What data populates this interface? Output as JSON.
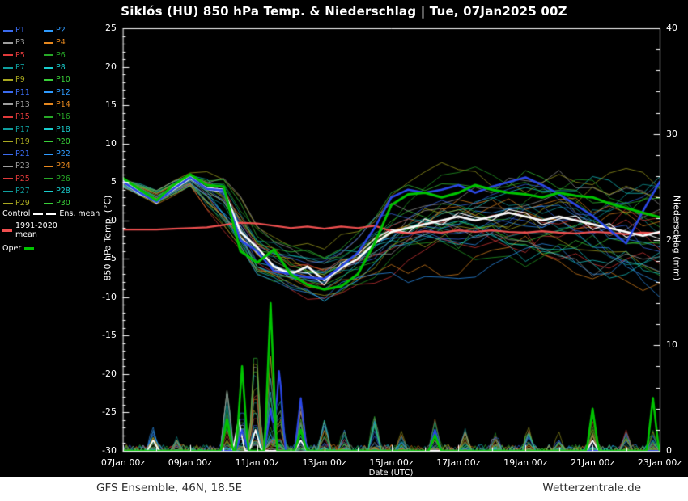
{
  "title": "Siklós  (HU)  850 hPa Temp. & Niederschlag | Tue, 07Jan2025 00Z",
  "footer": {
    "left": "GFS Ensemble, 46N, 18.5E",
    "right": "Wetterzentrale.de"
  },
  "colors": {
    "background": "#000000",
    "frame": "#ffffff",
    "title_text": "#ffffff",
    "footer_bg": "#ffffff",
    "footer_text": "#2e2e2e"
  },
  "axes": {
    "x_label": "Date (UTC)",
    "y_left_label": "850 hPa Temp. (°C)",
    "y_right_label": "Niederschlag (mm)",
    "x_tick_labels": [
      "07Jan 00z",
      "09Jan 00z",
      "11Jan 00z",
      "13Jan 00z",
      "15Jan 00z",
      "17Jan 00z",
      "19Jan 00z",
      "21Jan 00z",
      "23Jan 00z"
    ],
    "x_tick_days": [
      0,
      2,
      4,
      6,
      8,
      10,
      12,
      14,
      16
    ],
    "y_left_ticks": [
      25,
      20,
      15,
      10,
      5,
      0,
      -5,
      -10,
      -15,
      -20,
      -25,
      -30
    ],
    "y_right_ticks": [
      40,
      30,
      20,
      10,
      0
    ],
    "x_range_days": [
      0,
      16
    ],
    "y_left_range": [
      -30,
      25
    ],
    "y_right_range": [
      0,
      40
    ]
  },
  "legend": {
    "members": [
      "P1",
      "P2",
      "P3",
      "P4",
      "P5",
      "P6",
      "P7",
      "P8",
      "P9",
      "P10",
      "P11",
      "P12",
      "P13",
      "P14",
      "P15",
      "P16",
      "P17",
      "P18",
      "P19",
      "P20",
      "P21",
      "P22",
      "P23",
      "P24",
      "P25",
      "P26",
      "P27",
      "P28",
      "P29",
      "P30"
    ],
    "palette": [
      "#3b6cf0",
      "#2f9bff",
      "#9e9e9e",
      "#e6881f",
      "#e03a3a",
      "#27a827",
      "#0f9f9f",
      "#19cdcd",
      "#a8a820",
      "#39d039"
    ],
    "special": [
      {
        "label": "Control",
        "color": "#ffffff"
      },
      {
        "label": "Ens. mean",
        "color": "#ffffff"
      },
      {
        "label": "1991-2020 mean",
        "color": "#f05050"
      },
      {
        "label": "Oper",
        "color": "#00c400"
      }
    ]
  },
  "chart_data": {
    "type": "line",
    "title": "Siklós (HU) 850 hPa Temp. & Niederschlag, GFS Ensemble, init Tue 07Jan2025 00Z",
    "xlabel": "Date (UTC)",
    "ylabel_left": "850 hPa Temp. (°C)",
    "ylabel_right": "Niederschlag (mm)",
    "x_unit": "days since 07Jan2025 00Z",
    "x_range_days": [
      0,
      16
    ],
    "ylim_left": [
      -30,
      25
    ],
    "ylim_right": [
      0,
      40
    ],
    "grid": false,
    "x_step_days": 0.5,
    "temperature_series": [
      {
        "name": "Control",
        "color": "#f2f2f2",
        "width": 1.2,
        "values": [
          5.2,
          3.8,
          2.2,
          4.3,
          5.8,
          4.0,
          3.7,
          -2.2,
          -4.2,
          -6.5,
          -6.6,
          -6.8,
          -8.4,
          -5.6,
          -4.4,
          -2.4,
          -1.2,
          -1.6,
          0.2,
          -0.6,
          1.0,
          0.4,
          0.0,
          1.4,
          1.0,
          -0.6,
          0.2,
          0.6,
          -1.2,
          -0.4,
          -2.2,
          -1.6,
          -2.4
        ]
      },
      {
        "name": "1991-2020 mean",
        "color": "#f05050",
        "width": 2.2,
        "values": [
          -1.2,
          -1.2,
          -1.2,
          -1.1,
          -1.0,
          -0.9,
          -0.6,
          -0.3,
          -0.4,
          -0.7,
          -1.0,
          -0.8,
          -1.1,
          -0.8,
          -1.0,
          -0.7,
          -1.4,
          -1.7,
          -1.4,
          -1.6,
          -1.3,
          -1.5,
          -1.3,
          -1.5,
          -1.6,
          -1.4,
          -1.6,
          -1.7,
          -1.5,
          -1.6,
          -1.8,
          -1.6,
          -1.7
        ]
      },
      {
        "name": "Ens. mean",
        "color": "#ffffff",
        "width": 2.6,
        "values": [
          5.0,
          3.5,
          2.5,
          4.0,
          5.5,
          4.2,
          4.0,
          -1.5,
          -3.5,
          -6.0,
          -7.0,
          -6.0,
          -7.8,
          -6.2,
          -5.0,
          -3.0,
          -1.5,
          -1.0,
          -0.5,
          0.0,
          0.5,
          0.0,
          0.5,
          1.0,
          0.5,
          0.0,
          0.5,
          0.0,
          -0.5,
          -1.0,
          -1.5,
          -2.0,
          -1.5
        ]
      },
      {
        "name": "Member (blue)",
        "color": "#2b48e8",
        "width": 2.6,
        "values": [
          5.0,
          3.6,
          2.4,
          4.1,
          5.6,
          4.1,
          3.9,
          -2.6,
          -4.0,
          -6.6,
          -7.0,
          -7.4,
          -7.6,
          -6.0,
          -4.2,
          -1.0,
          3.0,
          4.0,
          3.6,
          4.0,
          4.6,
          3.6,
          4.4,
          5.0,
          5.6,
          4.6,
          3.4,
          2.0,
          0.6,
          -1.2,
          -3.0,
          1.2,
          5.0
        ]
      },
      {
        "name": "Oper",
        "color": "#00c400",
        "width": 3.0,
        "values": [
          5.5,
          4.0,
          2.6,
          4.6,
          6.0,
          4.6,
          4.4,
          -4.0,
          -5.5,
          -3.8,
          -7.0,
          -8.4,
          -9.0,
          -8.6,
          -7.0,
          -3.0,
          2.0,
          3.4,
          3.6,
          3.0,
          3.6,
          4.6,
          4.0,
          3.6,
          3.4,
          3.0,
          3.6,
          3.2,
          3.0,
          2.2,
          1.6,
          1.0,
          0.4
        ]
      }
    ],
    "ensemble_envelope": {
      "count": 30,
      "x_step_days": 1,
      "mean": [
        4.8,
        3.0,
        5.2,
        2.0,
        -4.5,
        -6.5,
        -7.5,
        -5.5,
        -2.0,
        -0.5,
        0.0,
        0.5,
        0.5,
        0.0,
        -0.5,
        -1.0,
        -1.5
      ],
      "spread": [
        0.5,
        0.9,
        0.7,
        2.8,
        2.6,
        2.4,
        2.6,
        3.2,
        4.0,
        4.5,
        5.0,
        5.0,
        5.5,
        5.5,
        6.0,
        6.5,
        7.0
      ]
    },
    "precip_events_mm": [
      [
        0.9,
        2.0
      ],
      [
        1.6,
        1.2
      ],
      [
        3.1,
        6.0
      ],
      [
        3.55,
        5.0
      ],
      [
        3.95,
        12.0
      ],
      [
        4.4,
        10.0
      ],
      [
        4.66,
        6.0
      ],
      [
        5.3,
        4.5
      ],
      [
        6.0,
        3.0
      ],
      [
        6.6,
        2.0
      ],
      [
        7.5,
        3.5
      ],
      [
        8.3,
        2.0
      ],
      [
        9.3,
        3.0
      ],
      [
        10.2,
        2.0
      ],
      [
        11.1,
        1.5
      ],
      [
        12.1,
        2.0
      ],
      [
        13.0,
        1.5
      ],
      [
        14.0,
        3.5
      ],
      [
        15.0,
        2.0
      ],
      [
        15.8,
        3.0
      ]
    ],
    "precip_named": [
      {
        "name": "Control",
        "color": "#ffffff",
        "width": 1.8,
        "events": [
          [
            0.9,
            1.0
          ],
          [
            3.45,
            3.0
          ],
          [
            3.95,
            2.0
          ],
          [
            5.3,
            1.0
          ],
          [
            14.0,
            1.0
          ]
        ]
      },
      {
        "name": "Member (blue)",
        "color": "#2b48e8",
        "width": 2.2,
        "events": [
          [
            3.55,
            2.0
          ],
          [
            4.4,
            4.0
          ],
          [
            4.66,
            8.0
          ],
          [
            5.3,
            5.0
          ],
          [
            9.3,
            2.0
          ]
        ]
      },
      {
        "name": "Oper",
        "color": "#00c400",
        "width": 2.6,
        "events": [
          [
            3.1,
            3.0
          ],
          [
            3.55,
            8.0
          ],
          [
            4.4,
            14.0
          ],
          [
            5.3,
            2.0
          ],
          [
            9.3,
            1.5
          ],
          [
            14.0,
            4.0
          ],
          [
            15.8,
            5.0
          ]
        ]
      }
    ]
  }
}
